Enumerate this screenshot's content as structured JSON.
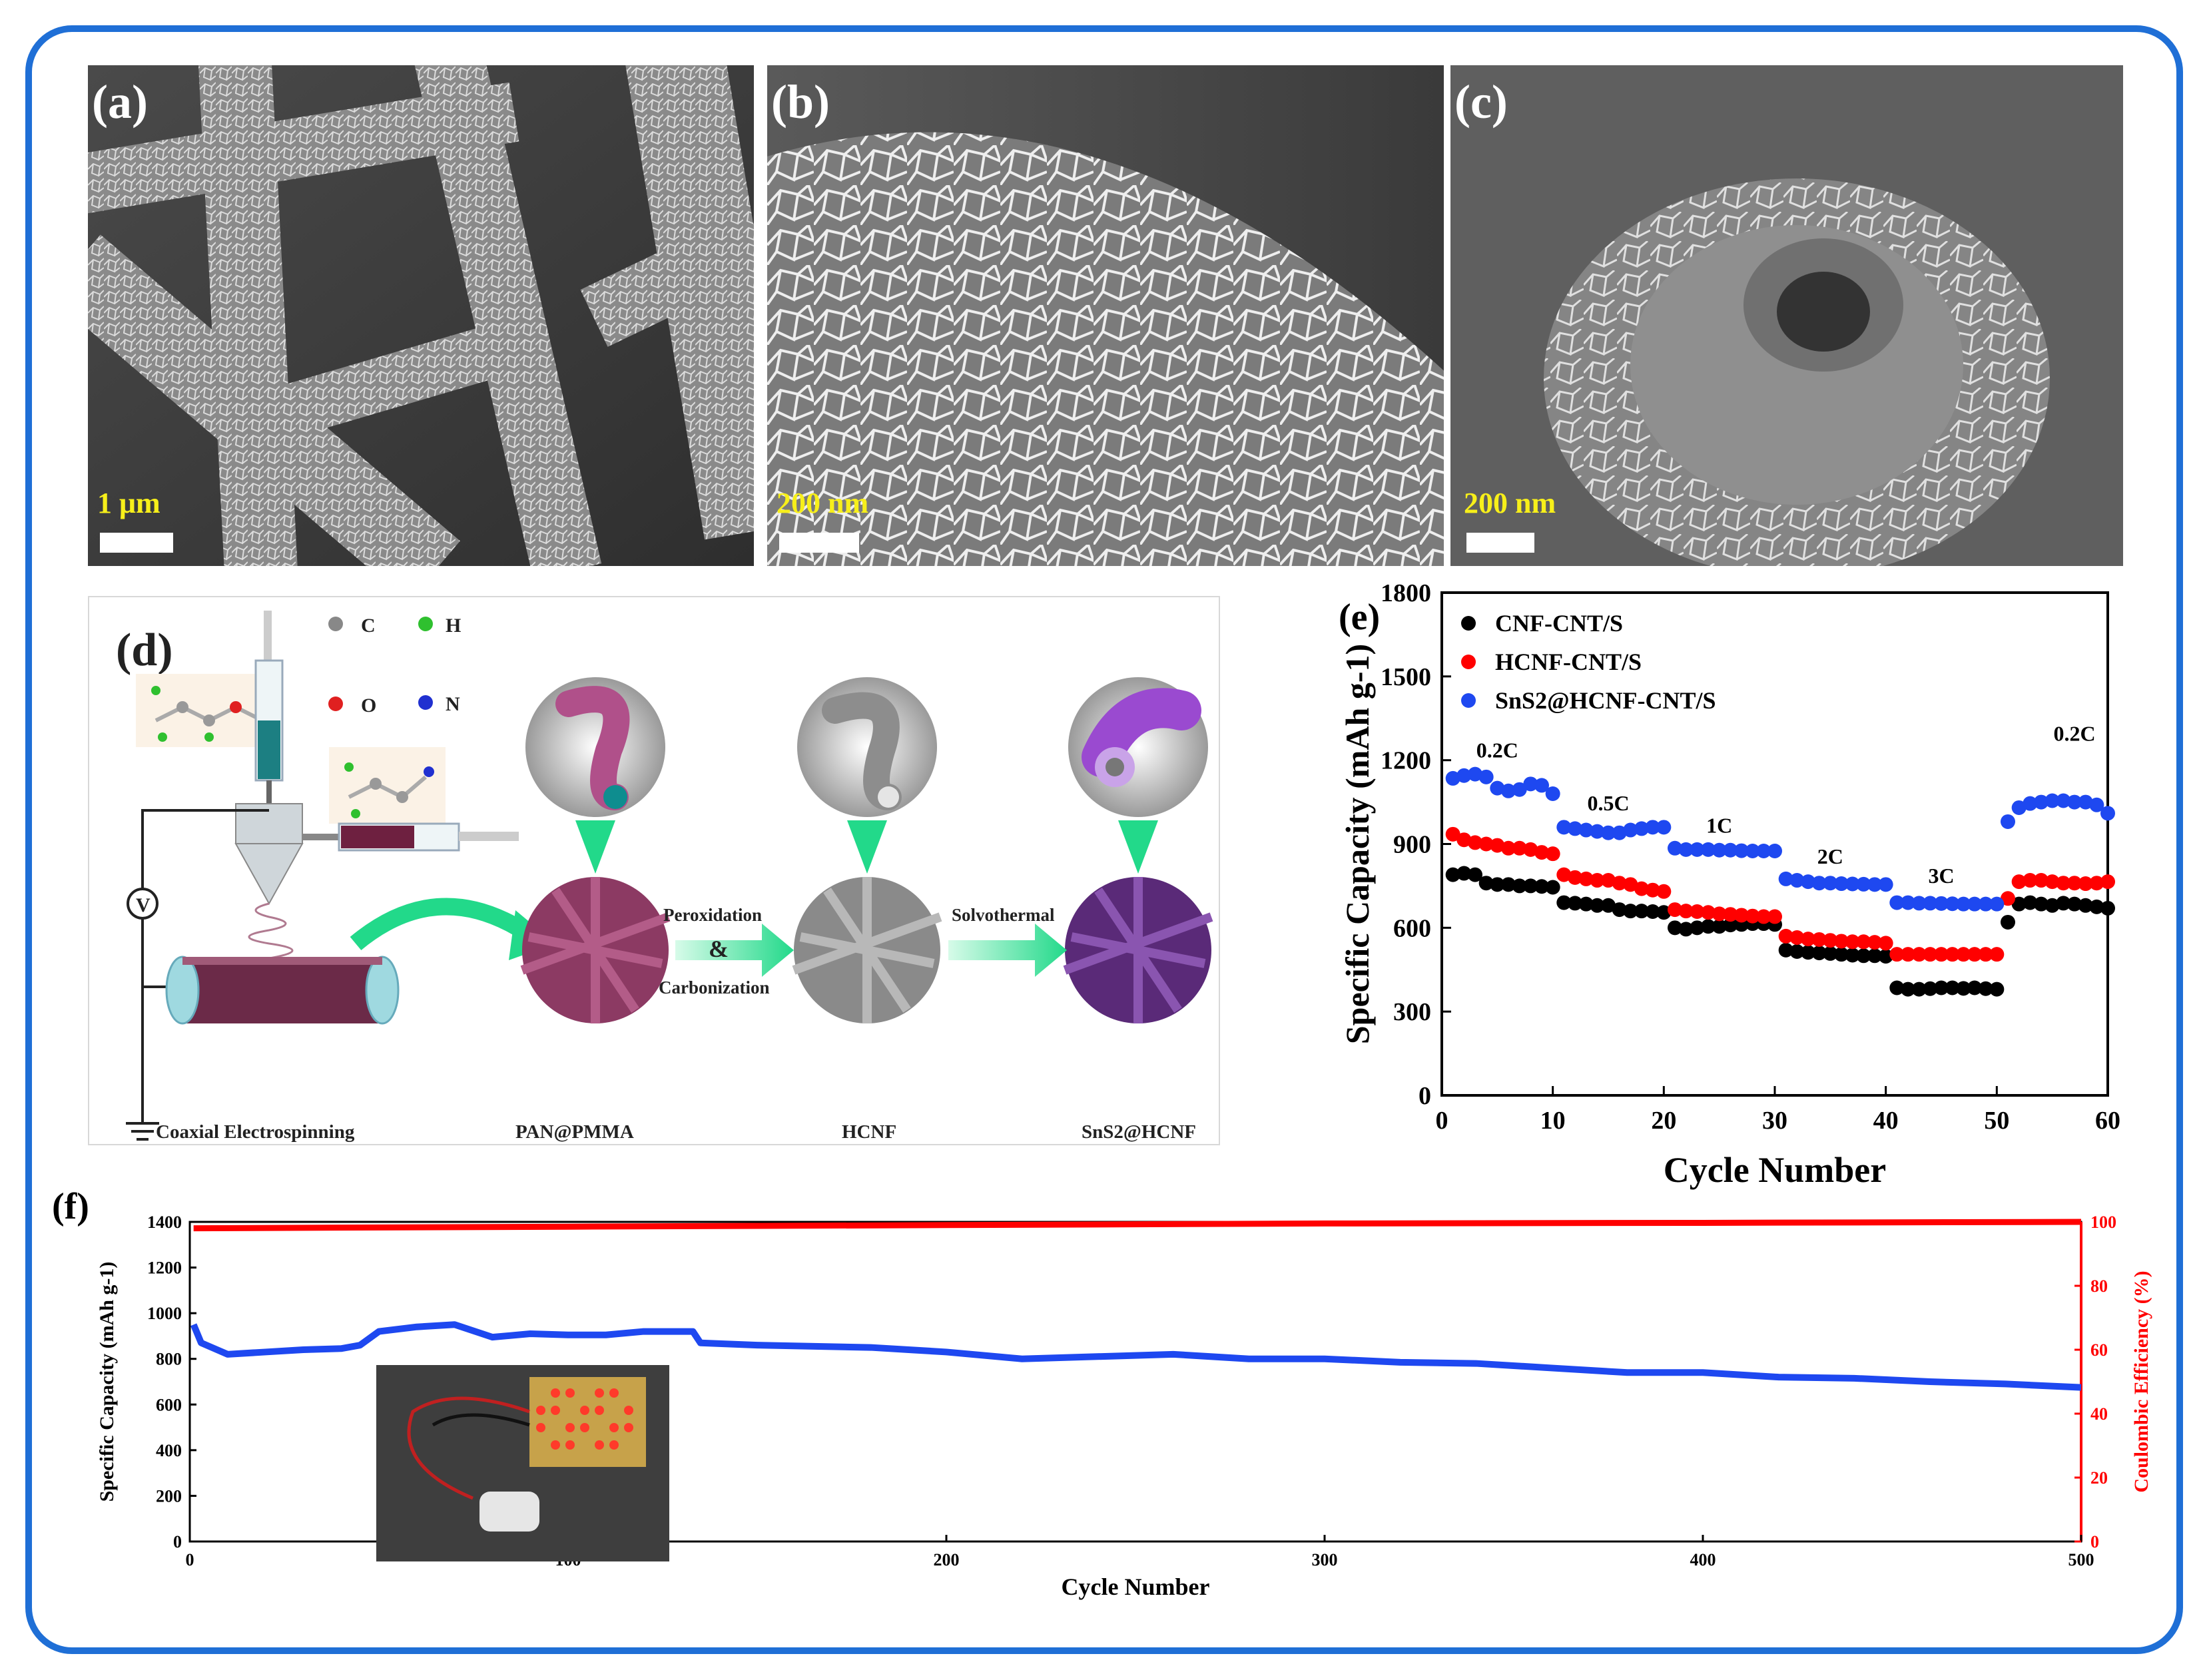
{
  "panels": {
    "a": {
      "label": "(a)",
      "scale": "1 μm"
    },
    "b": {
      "label": "(b)",
      "scale": "200 nm"
    },
    "c": {
      "label": "(c)",
      "scale": "200 nm"
    }
  },
  "schematic": {
    "label": "(d)",
    "atoms": {
      "c": "C",
      "h": "H",
      "o": "O",
      "n": "N"
    },
    "voltage": "V",
    "stages": {
      "electrospinning": "Coaxial Electrospinning",
      "pan_pmma": "PAN@PMMA",
      "hcnf": "HCNF",
      "sns2_hcnf": "SnS2@HCNF"
    },
    "arrows": {
      "step1_line1": "Peroxidation",
      "step1_amp": "&",
      "step1_line2": "Carbonization",
      "step2": "Solvothermal"
    }
  },
  "colors": {
    "frame": "#1f6fd6",
    "series_black": "#000000",
    "series_red": "#ff0000",
    "series_blue": "#1e48f0",
    "scale_text": "#f7ef1a"
  },
  "chart_data": [
    {
      "panel": "(e)",
      "type": "scatter",
      "xlabel": "Cycle Number",
      "ylabel": "Specific Capacity (mAh g-1)",
      "xlim": [
        0,
        60
      ],
      "ylim": [
        0,
        1800
      ],
      "xticks": [
        0,
        10,
        20,
        30,
        40,
        50,
        60
      ],
      "yticks": [
        0,
        300,
        600,
        900,
        1200,
        1500,
        1800
      ],
      "legend": [
        "CNF-CNT/S",
        "HCNF-CNT/S",
        "SnS2@HCNF-CNT/S"
      ],
      "annotations": [
        "0.2C",
        "0.5C",
        "1C",
        "2C",
        "3C",
        "0.2C"
      ],
      "series": [
        {
          "name": "CNF-CNT/S",
          "color": "#000000",
          "values": [
            790,
            795,
            790,
            760,
            755,
            755,
            750,
            750,
            748,
            745,
            690,
            688,
            685,
            680,
            680,
            665,
            660,
            660,
            658,
            655,
            600,
            595,
            600,
            605,
            605,
            610,
            612,
            615,
            615,
            612,
            520,
            515,
            512,
            510,
            508,
            505,
            502,
            500,
            500,
            498,
            385,
            380,
            380,
            382,
            385,
            385,
            383,
            385,
            382,
            380,
            620,
            685,
            690,
            685,
            680,
            688,
            685,
            680,
            675,
            670
          ]
        },
        {
          "name": "HCNF-CNT/S",
          "color": "#ff0000",
          "values": [
            935,
            915,
            905,
            900,
            895,
            885,
            885,
            880,
            870,
            865,
            790,
            780,
            775,
            770,
            770,
            760,
            755,
            740,
            735,
            730,
            665,
            660,
            658,
            655,
            650,
            648,
            645,
            642,
            640,
            640,
            570,
            565,
            560,
            558,
            555,
            552,
            550,
            550,
            548,
            545,
            505,
            505,
            505,
            505,
            505,
            505,
            505,
            505,
            505,
            505,
            705,
            765,
            770,
            770,
            765,
            760,
            760,
            758,
            760,
            765
          ]
        },
        {
          "name": "SnS2@HCNF-CNT/S",
          "color": "#1e48f0",
          "values": [
            1135,
            1145,
            1150,
            1140,
            1100,
            1090,
            1095,
            1115,
            1110,
            1080,
            960,
            955,
            950,
            945,
            940,
            940,
            950,
            955,
            960,
            960,
            885,
            880,
            880,
            880,
            878,
            878,
            876,
            875,
            875,
            875,
            775,
            770,
            765,
            760,
            760,
            758,
            757,
            756,
            755,
            755,
            690,
            690,
            688,
            688,
            687,
            686,
            685,
            685,
            685,
            685,
            980,
            1030,
            1045,
            1050,
            1055,
            1055,
            1050,
            1050,
            1040,
            1010
          ]
        }
      ]
    },
    {
      "panel": "(f)",
      "type": "line",
      "xlabel": "Cycle Number",
      "ylabel": "Specific Capacity (mAh g-1)",
      "y2label": "Coulombic Efficiency (%)",
      "xlim": [
        0,
        500
      ],
      "ylim": [
        0,
        1400
      ],
      "y2lim": [
        0,
        100
      ],
      "xticks": [
        0,
        100,
        200,
        300,
        400,
        500
      ],
      "yticks": [
        0,
        200,
        400,
        600,
        800,
        1000,
        1200,
        1400
      ],
      "y2ticks": [
        0,
        20,
        40,
        60,
        80,
        100
      ],
      "series": [
        {
          "name": "Specific Capacity",
          "axis": "left",
          "color": "#1e48f0",
          "x": [
            1,
            3,
            10,
            20,
            30,
            40,
            45,
            50,
            60,
            70,
            80,
            90,
            100,
            110,
            120,
            133,
            135,
            150,
            180,
            200,
            220,
            240,
            260,
            280,
            300,
            320,
            340,
            360,
            380,
            400,
            420,
            440,
            460,
            480,
            500
          ],
          "values": [
            950,
            870,
            820,
            830,
            840,
            845,
            860,
            920,
            940,
            950,
            895,
            910,
            905,
            905,
            920,
            920,
            870,
            860,
            850,
            830,
            800,
            810,
            820,
            800,
            800,
            785,
            780,
            760,
            740,
            740,
            720,
            715,
            700,
            690,
            675
          ]
        },
        {
          "name": "Coulombic Efficiency",
          "axis": "right",
          "color": "#ff0000",
          "x": [
            1,
            100,
            200,
            300,
            400,
            500
          ],
          "values": [
            98,
            98.5,
            99,
            99.5,
            99.7,
            100
          ]
        }
      ]
    }
  ]
}
